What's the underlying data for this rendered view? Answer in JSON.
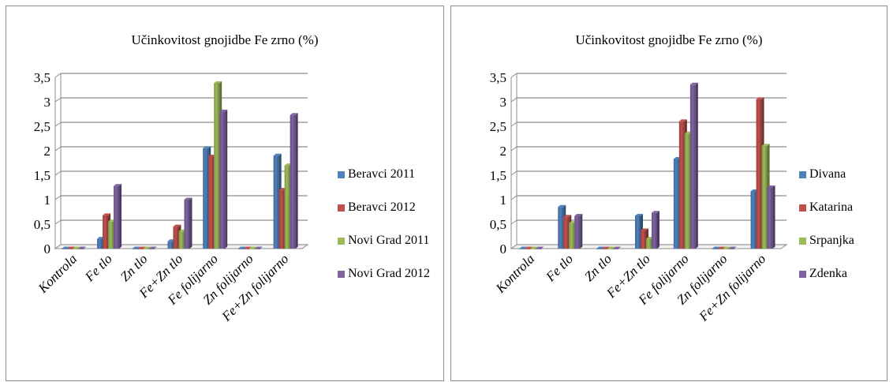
{
  "chart_data": [
    {
      "type": "bar",
      "title": "Učinkovitost gnojidbe Fe zrno (%)",
      "categories": [
        "Kontrola",
        "Fe tlo",
        "Zn tlo",
        "Fe+Zn tlo",
        "Fe folijarno",
        "Zn folijarno",
        "Fe+Zn folijarno"
      ],
      "series": [
        {
          "name": "Beravci 2011",
          "color": "#4f81bd",
          "values": [
            0,
            0.2,
            0,
            0.15,
            2.05,
            0,
            1.9
          ]
        },
        {
          "name": "Beravci 2012",
          "color": "#c0504d",
          "values": [
            0,
            0.68,
            0,
            0.45,
            1.88,
            0,
            1.2
          ]
        },
        {
          "name": "Novi Grad 2011",
          "color": "#9bbb59",
          "values": [
            0,
            0.55,
            0,
            0.35,
            3.38,
            0,
            1.7
          ]
        },
        {
          "name": "Novi Grad 2012",
          "color": "#8064a2",
          "values": [
            0,
            1.28,
            0,
            1.0,
            2.8,
            0,
            2.73
          ]
        }
      ],
      "yticks": [
        "0",
        "0,5",
        "1",
        "1,5",
        "2",
        "2,5",
        "3",
        "3,5"
      ],
      "ylim": [
        0,
        3.5
      ],
      "grid": true,
      "legend": "right"
    },
    {
      "type": "bar",
      "title": "Učinkovitost gnojidbe Fe zrno (%)",
      "categories": [
        "Kontrola",
        "Fe tlo",
        "Zn tlo",
        "Fe+Zn tlo",
        "Fe folijarno",
        "Zn folijarno",
        "Fe+Zn folijarno"
      ],
      "series": [
        {
          "name": "Divana",
          "color": "#4f81bd",
          "values": [
            0,
            0.85,
            0,
            0.67,
            1.83,
            0,
            1.17
          ]
        },
        {
          "name": "Katarina",
          "color": "#c0504d",
          "values": [
            0,
            0.65,
            0,
            0.37,
            2.6,
            0,
            3.05
          ]
        },
        {
          "name": "Srpanjka",
          "color": "#9bbb59",
          "values": [
            0,
            0.52,
            0,
            0.2,
            2.35,
            0,
            2.1
          ]
        },
        {
          "name": "Zdenka",
          "color": "#8064a2",
          "values": [
            0,
            0.67,
            0,
            0.73,
            3.35,
            0,
            1.25
          ]
        }
      ],
      "yticks": [
        "0",
        "0,5",
        "1",
        "1,5",
        "2",
        "2,5",
        "3",
        "3,5"
      ],
      "ylim": [
        0,
        3.5
      ],
      "grid": true,
      "legend": "right"
    }
  ]
}
